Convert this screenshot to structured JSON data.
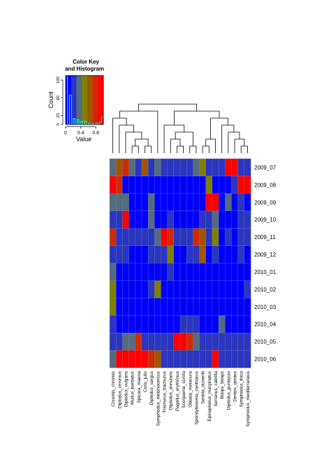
{
  "chart_data": {
    "type": "heatmap",
    "title": "",
    "color_key": {
      "title_line1": "Color Key",
      "title_line2": "and Histogram",
      "ylabel": "Count",
      "xlabel": "Value",
      "y_ticks": [
        "0",
        "20",
        "60",
        "100"
      ],
      "x_ticks": [
        "0",
        "0.4",
        "0.8"
      ],
      "colors": [
        "#0000ff",
        "#2a36c0",
        "#556b80",
        "#808000",
        "#a25500",
        "#d12a00",
        "#ff0000"
      ],
      "histogram_color": "#00ffff"
    },
    "rows": [
      "2009_07",
      "2009_08",
      "2009_09",
      "2009_10",
      "2009_11",
      "2009_12",
      "2010_01",
      "2010_02",
      "2010_03",
      "2010_04",
      "2010_05",
      "2010_06"
    ],
    "columns": [
      "Chromis_chromis",
      "Diplodus_cervinus",
      "Diplodus_vulgaris",
      "Mullus_barbatus",
      "Spicara_maena",
      "Coris_julis",
      "Diplodus_sargus",
      "Symphodus_melanocercus",
      "Trachurus_trachurus",
      "Diplodus_annularis",
      "Pagellus_erythrinus",
      "Scorpaena_scrofa",
      "Oblada_melanura",
      "Spondyliosoma_cantharus",
      "Seriola_dumerili",
      "Epinephelus_marginatus",
      "Serranus_cabrilla",
      "Boops_boops",
      "Diplodus_puntazzo",
      "Dentex_dentex",
      "Symphodus_tinca",
      "Symphodus_mediterraneus"
    ],
    "values": [
      [
        0.3,
        0.6,
        0.9,
        0.3,
        0.1,
        0.6,
        0.1,
        0.3,
        0.1,
        0.1,
        0.1,
        0.1,
        0.1,
        0.3,
        0.5,
        0.1,
        0.2,
        0.1,
        1.0,
        1.0,
        0.2,
        0.1
      ],
      [
        1.0,
        0.9,
        0.0,
        0.0,
        0.0,
        0.0,
        0.0,
        0.0,
        0.0,
        0.0,
        0.0,
        0.0,
        0.0,
        0.0,
        0.0,
        0.5,
        0.0,
        0.0,
        0.0,
        0.1,
        1.0,
        1.0
      ],
      [
        0.3,
        0.4,
        0.4,
        0.0,
        0.0,
        0.0,
        0.4,
        0.0,
        0.0,
        0.0,
        0.0,
        0.0,
        0.0,
        0.0,
        0.0,
        1.0,
        1.0,
        0.0,
        0.3,
        0.0,
        0.1,
        0.0
      ],
      [
        0.1,
        0.1,
        1.0,
        0.0,
        0.0,
        0.0,
        0.4,
        0.0,
        0.0,
        0.1,
        0.0,
        0.0,
        0.0,
        0.0,
        0.1,
        0.1,
        0.3,
        0.0,
        0.0,
        0.0,
        0.1,
        0.1
      ],
      [
        0.9,
        0.2,
        0.2,
        0.1,
        0.1,
        0.1,
        0.2,
        0.4,
        1.0,
        0.8,
        0.1,
        0.1,
        0.2,
        0.8,
        0.7,
        0.1,
        0.5,
        0.0,
        0.1,
        0.0,
        0.1,
        0.1
      ],
      [
        0.1,
        0.1,
        0.1,
        0.0,
        0.0,
        0.0,
        0.1,
        0.1,
        0.1,
        0.5,
        0.0,
        0.0,
        0.1,
        0.1,
        0.6,
        0.0,
        0.1,
        0.0,
        0.0,
        0.0,
        0.1,
        0.0
      ],
      [
        0.3,
        0.0,
        0.0,
        0.0,
        0.0,
        0.0,
        0.0,
        0.0,
        0.0,
        0.2,
        0.0,
        0.0,
        0.0,
        0.0,
        0.0,
        0.0,
        0.0,
        0.0,
        0.0,
        0.0,
        0.0,
        0.0
      ],
      [
        0.5,
        0.0,
        0.0,
        0.0,
        0.0,
        0.0,
        0.1,
        0.5,
        0.0,
        0.0,
        0.0,
        0.0,
        0.0,
        0.0,
        0.0,
        0.0,
        0.0,
        0.0,
        0.0,
        0.0,
        0.0,
        0.1
      ],
      [
        0.5,
        0.0,
        0.0,
        0.0,
        0.0,
        0.0,
        0.0,
        0.0,
        0.0,
        0.0,
        0.0,
        0.0,
        0.0,
        0.0,
        0.0,
        0.0,
        0.0,
        0.0,
        0.0,
        0.0,
        0.0,
        0.0
      ],
      [
        0.2,
        0.0,
        0.0,
        0.0,
        0.0,
        0.0,
        0.0,
        0.0,
        0.0,
        0.0,
        0.0,
        0.1,
        0.1,
        0.2,
        0.0,
        0.0,
        0.0,
        0.4,
        0.0,
        0.0,
        0.0,
        0.0
      ],
      [
        0.2,
        0.2,
        0.3,
        0.3,
        0.8,
        0.2,
        0.2,
        0.1,
        0.1,
        0.1,
        1.0,
        1.0,
        0.9,
        0.3,
        0.1,
        0.1,
        0.1,
        0.1,
        0.1,
        0.1,
        0.1,
        0.1
      ],
      [
        0.4,
        1.0,
        1.0,
        1.0,
        1.0,
        1.0,
        0.9,
        0.7,
        0.1,
        0.1,
        0.1,
        0.1,
        0.1,
        0.1,
        0.1,
        0.1,
        1.0,
        0.1,
        0.1,
        0.1,
        0.1,
        0.1
      ]
    ],
    "value_range": [
      0,
      1
    ],
    "grid": true,
    "legend_position": "top-left"
  }
}
